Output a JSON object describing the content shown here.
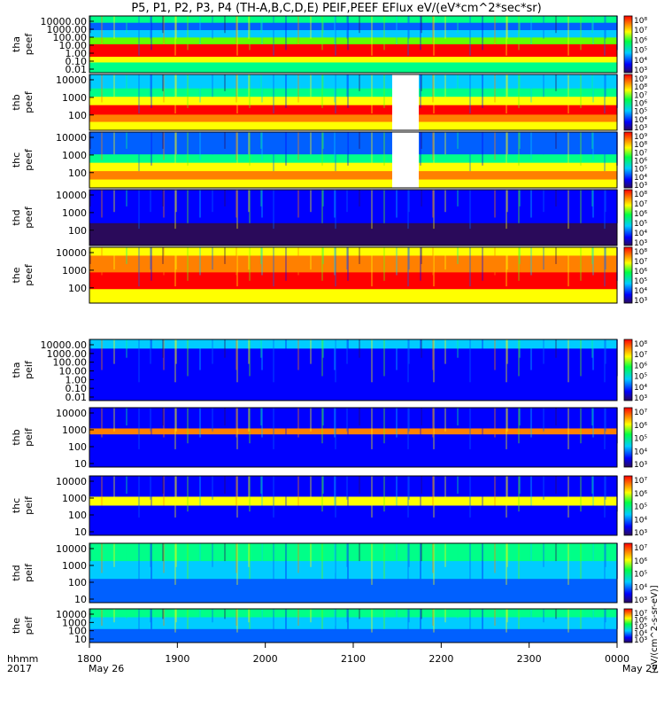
{
  "title": "P5, P1, P2, P3, P4 (TH-A,B,C,D,E) PEIF,PEEF EFlux eV/(eV*cm^2*sec*sr)",
  "colorbar_unit": "[eV/(cm^2-s-sr-eV)]",
  "time_axis": {
    "ticks": [
      "1800",
      "1900",
      "2000",
      "2100",
      "2200",
      "2300",
      "0000"
    ],
    "date_labels": [
      "May 26",
      "May 27"
    ],
    "row_label_top": "hhmm",
    "row_label_bottom": "2017"
  },
  "chart_data": {
    "type": "heatmap",
    "x_range": [
      "2017-05-26 18:00",
      "2017-05-27 00:00"
    ],
    "y_scale": "log",
    "z_scale": "log",
    "panels": [
      {
        "probe": "tha",
        "species": "peef",
        "y_ticks": [
          "10000.00",
          "1000.00",
          "100.00",
          "10.00",
          "1.00",
          "0.10",
          "0.01"
        ],
        "cb_ticks": [
          "10⁸",
          "10⁷",
          "10⁶",
          "10⁵",
          "10⁴",
          "10³"
        ],
        "cb_unit": ""
      },
      {
        "probe": "thb",
        "species": "peef",
        "y_ticks": [
          "10000",
          "1000",
          "100"
        ],
        "cb_ticks": [
          "10⁹",
          "10⁸",
          "10⁷",
          "10⁶",
          "10⁵",
          "10⁴",
          "10³"
        ],
        "cb_unit": ""
      },
      {
        "probe": "thc",
        "species": "peef",
        "y_ticks": [
          "10000",
          "1000",
          "100"
        ],
        "cb_ticks": [
          "10⁹",
          "10⁸",
          "10⁷",
          "10⁶",
          "10⁵",
          "10⁴",
          "10³"
        ],
        "cb_unit": ""
      },
      {
        "probe": "thd",
        "species": "peef",
        "y_ticks": [
          "10000",
          "1000",
          "100"
        ],
        "cb_ticks": [
          "10⁸",
          "10⁷",
          "10⁶",
          "10⁵",
          "10⁴",
          "10³"
        ],
        "cb_unit": ""
      },
      {
        "probe": "the",
        "species": "peef",
        "y_ticks": [
          "10000",
          "1000",
          "100"
        ],
        "cb_ticks": [
          "10⁸",
          "10⁷",
          "10⁶",
          "10⁵",
          "10⁴",
          "10³"
        ],
        "cb_unit": ""
      },
      {
        "probe": "tha",
        "species": "peif",
        "y_ticks": [
          "10000.00",
          "1000.00",
          "100.00",
          "10.00",
          "1.00",
          "0.10",
          "0.01"
        ],
        "cb_ticks": [
          "10⁸",
          "10⁷",
          "10⁶",
          "10⁵",
          "10⁴",
          "10³"
        ],
        "cb_unit": ""
      },
      {
        "probe": "thb",
        "species": "peif",
        "y_ticks": [
          "10000",
          "1000",
          "100",
          "10"
        ],
        "cb_ticks": [
          "10⁷",
          "10⁶",
          "10⁵",
          "10⁴",
          "10³"
        ],
        "cb_unit": ""
      },
      {
        "probe": "thc",
        "species": "peif",
        "y_ticks": [
          "10000",
          "1000",
          "100",
          "10"
        ],
        "cb_ticks": [
          "10⁷",
          "10⁶",
          "10⁵",
          "10⁴",
          "10³"
        ],
        "cb_unit": ""
      },
      {
        "probe": "thd",
        "species": "peif",
        "y_ticks": [
          "10000",
          "1000",
          "100",
          "10"
        ],
        "cb_ticks": [
          "10⁷",
          "10⁶",
          "10⁵",
          "10⁴",
          "10³"
        ],
        "cb_unit": ""
      },
      {
        "probe": "the",
        "species": "peif",
        "y_ticks": [
          "10000",
          "1000",
          "100",
          "10"
        ],
        "cb_ticks": [
          "10⁷",
          "10⁶",
          "10⁵",
          "10⁴",
          "10³"
        ],
        "cb_unit": ""
      }
    ]
  }
}
